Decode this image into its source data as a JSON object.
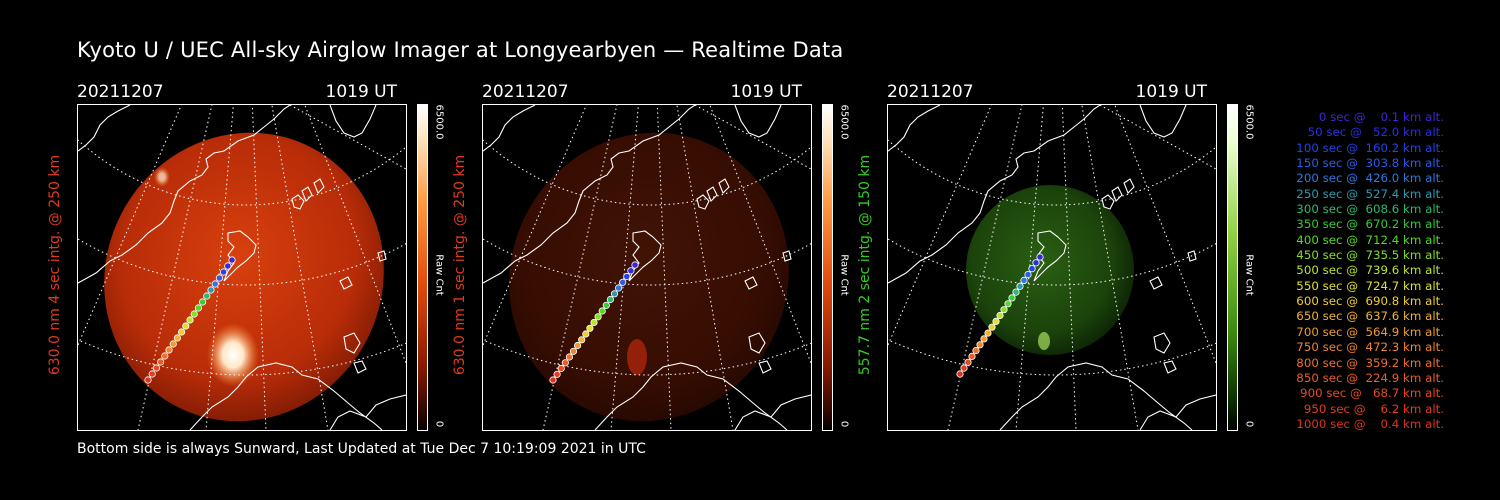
{
  "title": "Kyoto U / UEC All-sky Airglow Imager at Longyearbyen — Realtime Data",
  "footer": "Bottom side is always Sunward, Last Updated at Tue Dec  7 10:19:09 2021 in UTC",
  "colorbar": {
    "max_label": "6500.0",
    "min_label": "0",
    "unit_label": "Raw Cnt"
  },
  "panels": [
    {
      "date": "20211207",
      "time": "1019 UT",
      "side_label": "630.0 nm 4 sec intg. @ 250 km",
      "side_color": "#e03a1e",
      "tint": "red",
      "brightness": 1.0
    },
    {
      "date": "20211207",
      "time": "1019 UT",
      "side_label": "630.0 nm 1 sec intg. @ 250 km",
      "side_color": "#e03a1e",
      "tint": "red",
      "brightness": 0.3
    },
    {
      "date": "20211207",
      "time": "1019 UT",
      "side_label": "557.7 nm 2 sec intg. @ 150 km",
      "side_color": "#33cc22",
      "tint": "green",
      "brightness": 0.35
    }
  ],
  "trajectory_legend": [
    {
      "text": "   0 sec @    0.1 km alt.",
      "color": "#3a28d6"
    },
    {
      "text": "  50 sec @   52.0 km alt.",
      "color": "#2a30e0"
    },
    {
      "text": " 100 sec @  160.2 km alt.",
      "color": "#2244e6"
    },
    {
      "text": " 150 sec @  303.8 km alt.",
      "color": "#2a5ce8"
    },
    {
      "text": " 200 sec @  426.0 km alt.",
      "color": "#2f78e0"
    },
    {
      "text": " 250 sec @  527.4 km alt.",
      "color": "#2e9ab0"
    },
    {
      "text": " 300 sec @  608.6 km alt.",
      "color": "#2eb870"
    },
    {
      "text": " 350 sec @  670.2 km alt.",
      "color": "#34cc38"
    },
    {
      "text": " 400 sec @  712.4 km alt.",
      "color": "#55d826"
    },
    {
      "text": " 450 sec @  735.5 km alt.",
      "color": "#86df24"
    },
    {
      "text": " 500 sec @  739.6 km alt.",
      "color": "#b8e42a"
    },
    {
      "text": " 550 sec @  724.7 km alt.",
      "color": "#dfe032"
    },
    {
      "text": " 600 sec @  690.8 km alt.",
      "color": "#f0cc30"
    },
    {
      "text": " 650 sec @  637.6 km alt.",
      "color": "#f2b22e"
    },
    {
      "text": " 700 sec @  564.9 km alt.",
      "color": "#f29a2c"
    },
    {
      "text": " 750 sec @  472.3 km alt.",
      "color": "#f0842a"
    },
    {
      "text": " 800 sec @  359.2 km alt.",
      "color": "#ee7028"
    },
    {
      "text": " 850 sec @  224.9 km alt.",
      "color": "#ea5c26"
    },
    {
      "text": " 900 sec @   68.7 km alt.",
      "color": "#e64a24"
    },
    {
      "text": " 950 sec @    6.2 km alt.",
      "color": "#e23e22"
    },
    {
      "text": "1000 sec @    0.4 km alt.",
      "color": "#dd3320"
    }
  ]
}
